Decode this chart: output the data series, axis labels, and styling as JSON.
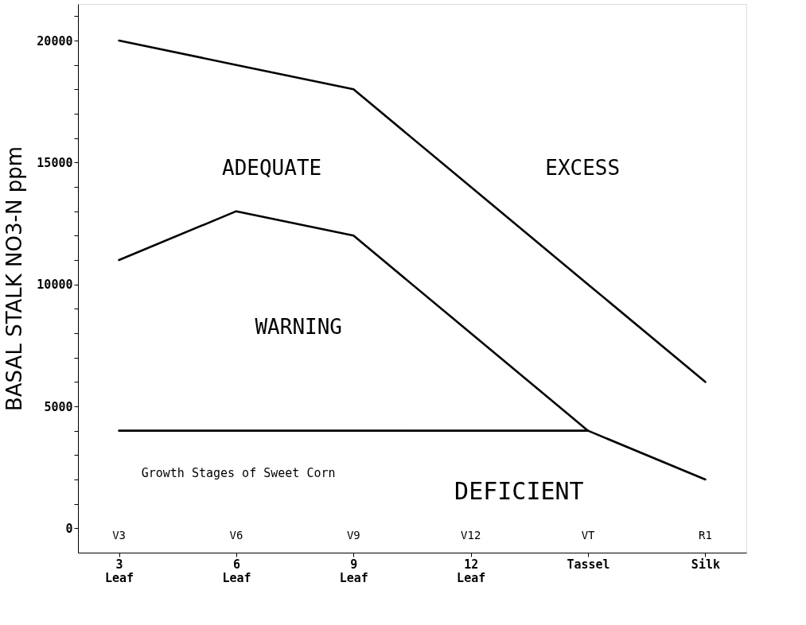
{
  "chart_data": {
    "type": "line",
    "ylabel": "BASAL STALK NO3-N ppm",
    "categories": [
      "3 Leaf",
      "6 Leaf",
      "9 Leaf",
      "12 Leaf",
      "Tassel",
      "Silk"
    ],
    "series": [
      {
        "color": "#000000",
        "values": [
          20000,
          19000,
          18000,
          14000,
          10000,
          6000
        ]
      },
      {
        "color": "#000000",
        "values": [
          11000,
          13000,
          12000,
          8000,
          4000,
          2000
        ]
      },
      {
        "color": "#000000",
        "values": [
          4000,
          4000,
          4000,
          4000,
          4000,
          null
        ]
      }
    ],
    "ylim": [
      -1000,
      21500
    ],
    "yticks": [
      0,
      {
        "value": 1000,
        "label": null
      },
      {
        "value": 2000,
        "label": null
      },
      {
        "value": 3000,
        "label": null
      },
      {
        "value": 4000,
        "label": null
      },
      5000,
      {
        "value": 6000,
        "label": null
      },
      {
        "value": 7000,
        "label": null
      },
      {
        "value": 8000,
        "label": null
      },
      {
        "value": 9000,
        "label": null
      },
      10000,
      {
        "value": 11000,
        "label": null
      },
      {
        "value": 12000,
        "label": null
      },
      {
        "value": 13000,
        "label": null
      },
      {
        "value": 14000,
        "label": null
      },
      15000,
      {
        "value": 16000,
        "label": null
      },
      {
        "value": 17000,
        "label": null
      },
      {
        "value": 18000,
        "label": null
      },
      {
        "value": 19000,
        "label": null
      },
      20000,
      {
        "value": 21000,
        "label": null
      }
    ],
    "annotations": [
      "ADEQUATE",
      "EXCESS",
      "WARNING",
      "DEFICIENT",
      "Growth Stages of Sweet Corn",
      "V3",
      "V6",
      "V9",
      "V12",
      "VT",
      "R1"
    ],
    "grid": false,
    "marker": "none",
    "line_style": "solid"
  }
}
